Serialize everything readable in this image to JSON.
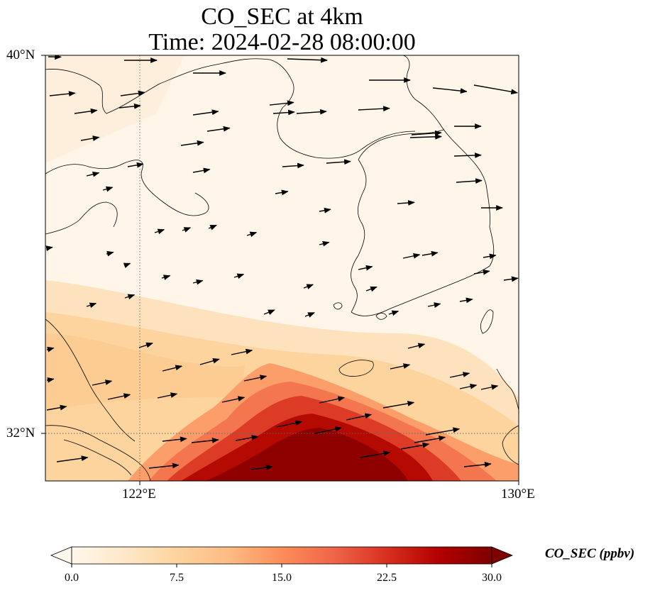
{
  "title": {
    "line1": "CO_SEC at 4km",
    "line2": "Time: 2024-02-28 08:00:00"
  },
  "axes": {
    "lat_ticks": [
      "40°N",
      "32°N"
    ],
    "lon_ticks": [
      "122°E",
      "130°E"
    ]
  },
  "colorbar": {
    "label": "CO_SEC (ppbv)",
    "ticks": [
      "0.0",
      "7.5",
      "15.0",
      "22.5",
      "30.0"
    ],
    "vmin": 0,
    "vmax": 30,
    "extend": "both",
    "colormap": "OrRd",
    "colors": [
      "#fff7ec",
      "#fee8c8",
      "#fdd49e",
      "#fdbb84",
      "#fc8d59",
      "#ef6548",
      "#d7301f",
      "#b30000",
      "#7f0000"
    ]
  },
  "map": {
    "extent": {
      "lon_min": 120,
      "lon_max": 130,
      "lat_min": 31,
      "lat_max": 40
    },
    "gridlines": {
      "lon": [
        122,
        130
      ],
      "lat": [
        32,
        40
      ],
      "style": "dotted"
    },
    "field": "CO_SEC",
    "units": "ppbv",
    "vectors": "wind"
  }
}
